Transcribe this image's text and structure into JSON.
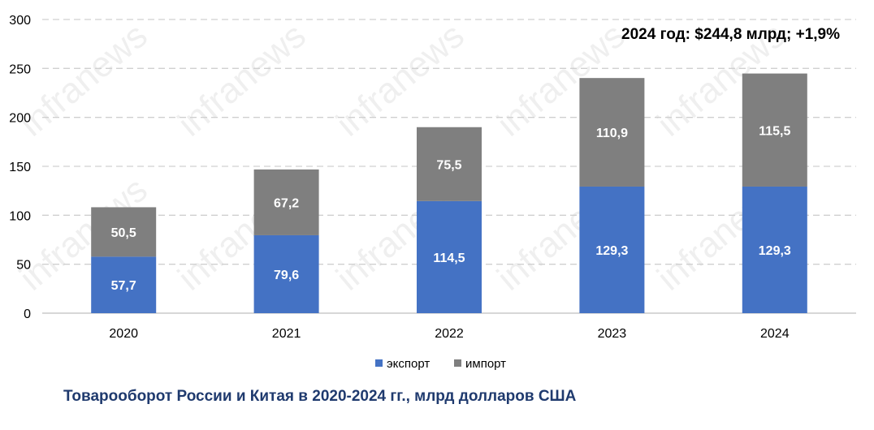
{
  "chart_data": {
    "type": "bar",
    "stacked": true,
    "categories": [
      "2020",
      "2021",
      "2022",
      "2023",
      "2024"
    ],
    "series": [
      {
        "name": "экспорт",
        "color": "#4472c4",
        "values": [
          57.7,
          79.6,
          114.5,
          129.3,
          129.3
        ],
        "labels": [
          "57,7",
          "79,6",
          "114,5",
          "129,3",
          "129,3"
        ]
      },
      {
        "name": "импорт",
        "color": "#7f7f7f",
        "values": [
          50.5,
          67.2,
          75.5,
          110.9,
          115.5
        ],
        "labels": [
          "50,5",
          "67,2",
          "75,5",
          "110,9",
          "115,5"
        ]
      }
    ],
    "ylim": [
      0,
      300
    ],
    "yticks": [
      0,
      50,
      100,
      150,
      200,
      250,
      300
    ],
    "grid": true,
    "legend_position": "bottom",
    "annotation": "2024 год: $244,8 млрд; +1,9%",
    "caption": "Товарооборот  России и Китая в 2020-2024 гг., млрд долларов США",
    "watermark": "infranews"
  }
}
